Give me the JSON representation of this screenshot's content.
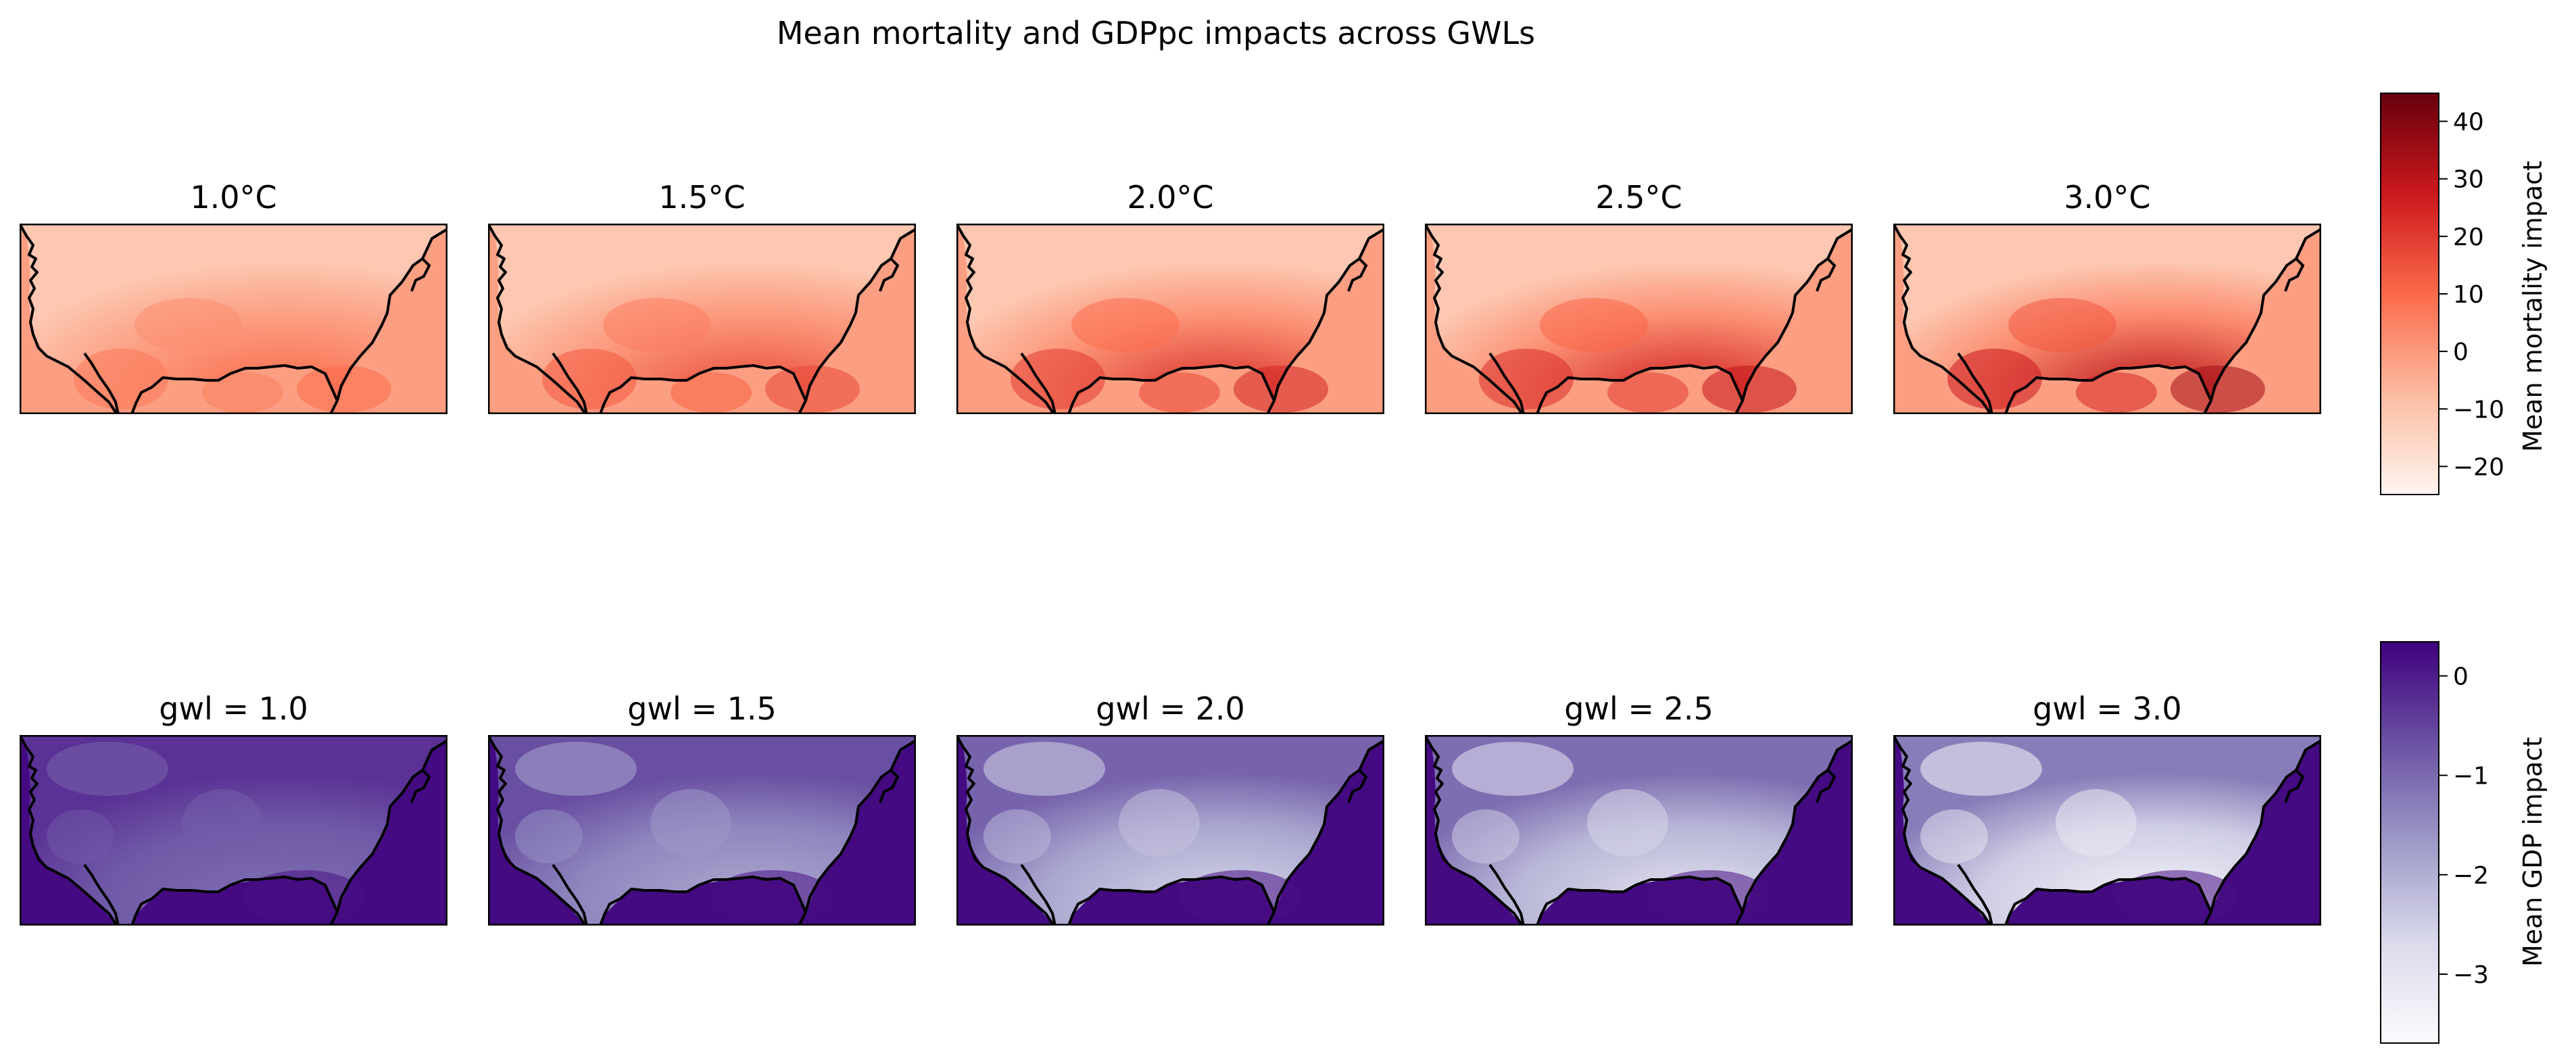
{
  "title": "Mean mortality and GDPpc impacts across GWLs",
  "chart_data": [
    {
      "type": "heatmap",
      "variable": "Mean mortality impact",
      "colormap": "Reds",
      "colors": [
        "#fff5f0",
        "#fcbba1",
        "#fb6a4a",
        "#cb181d",
        "#67000d"
      ],
      "panels": [
        {
          "title": "1.0°C",
          "intensity": 0.35
        },
        {
          "title": "1.5°C",
          "intensity": 0.55
        },
        {
          "title": "2.0°C",
          "intensity": 0.75
        },
        {
          "title": "2.5°C",
          "intensity": 0.85
        },
        {
          "title": "3.0°C",
          "intensity": 1.0
        }
      ],
      "colorbar": {
        "label": "Mean mortality impact",
        "range": [
          -25,
          45
        ],
        "ticks": [
          -20,
          -10,
          0,
          10,
          20,
          30,
          40
        ],
        "tick_labels": [
          "−20",
          "−10",
          "0",
          "10",
          "20",
          "30",
          "40"
        ]
      }
    },
    {
      "type": "heatmap",
      "variable": "Mean GDP impact",
      "colormap": "Purples",
      "colors": [
        "#fcfbfd",
        "#dadaeb",
        "#9e9ac8",
        "#6a51a3",
        "#3f007d"
      ],
      "panels": [
        {
          "title": "gwl = 1.0",
          "intensity": 0.3
        },
        {
          "title": "gwl = 1.5",
          "intensity": 0.55
        },
        {
          "title": "gwl = 2.0",
          "intensity": 0.75
        },
        {
          "title": "gwl = 2.5",
          "intensity": 0.85
        },
        {
          "title": "gwl = 3.0",
          "intensity": 1.0
        }
      ],
      "colorbar": {
        "label": "Mean GDP impact",
        "range": [
          -3.7,
          0.35
        ],
        "ticks": [
          -3,
          -2,
          -1,
          0
        ],
        "tick_labels": [
          "−3",
          "−2",
          "−1",
          "0"
        ]
      }
    }
  ]
}
